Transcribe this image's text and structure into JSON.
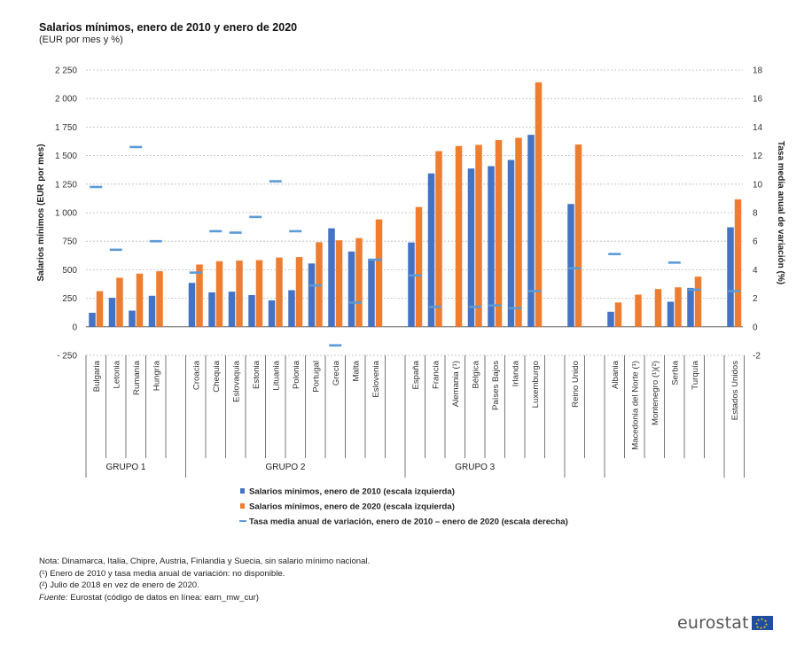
{
  "title": "Salarios mínimos,  enero de 2010 y enero de 2020",
  "subtitle": "(EUR por mes y %)",
  "notes": [
    "Nota: Dinamarca, Italia, Chipre, Austria, Finlandia y Suecia, sin salario mínimo nacional.",
    "(¹) Enero de 2010 y tasa media anual de variación: no disponible.",
    "(²) Julio de 2018 en vez de enero de 2020."
  ],
  "source_label": "Fuente:",
  "source_text": " Eurostat (código de datos en línea: earn_mw_cur)",
  "brand": "eurostat",
  "chart_data": {
    "type": "bar",
    "ylabel": "Salarios mínimos (EUR por mes)",
    "y2label": "Tasa media anual de variación (%)",
    "ylim": [
      -250,
      2250
    ],
    "y2lim": [
      -2,
      18
    ],
    "yticks": [
      "- 250",
      "0",
      "250",
      "500",
      "750",
      "1 000",
      "1 250",
      "1 500",
      "1 750",
      "2 000",
      "2 250"
    ],
    "y2ticks": [
      "-2",
      "0",
      "2",
      "4",
      "6",
      "8",
      "10",
      "12",
      "14",
      "16",
      "18"
    ],
    "colors": {
      "s2010": "#4472c4",
      "s2020": "#ed7d31",
      "rate": "#5b9bd5"
    },
    "categories": [
      "Bulgaria",
      "Letonia",
      "Rumanía",
      "Hungría",
      "Croacia",
      "Chequia",
      "Eslovaquia",
      "Estonia",
      "Lituania",
      "Polonia",
      "Portugal",
      "Grecia",
      "Malta",
      "Eslovenia",
      "España",
      "Francia",
      "Alemania (¹)",
      "Bélgica",
      "Países Bajos",
      "Irlanda",
      "Luxemburgo",
      "Reino Unido",
      "Albania",
      "Macedonia del Norte (¹)",
      "Montenegro (¹)(²)",
      "Serbia",
      "Turquía",
      "Estados Unidos"
    ],
    "groups": [
      {
        "label": "GRUPO 1",
        "count": 4
      },
      {
        "label": "GRUPO 2",
        "count": 10
      },
      {
        "label": "GRUPO 3",
        "count": 7
      },
      {
        "label": "",
        "count": 1
      },
      {
        "label": "",
        "count": 5
      },
      {
        "label": "",
        "count": 1
      }
    ],
    "series": [
      {
        "name": "Salarios mínimos, enero de 2010 (escala izquierda)",
        "axis": "left",
        "values": [
          123,
          254,
          142,
          272,
          385,
          302,
          308,
          278,
          232,
          321,
          555,
          863,
          660,
          597,
          739,
          1344,
          null,
          1387,
          1408,
          1462,
          1682,
          1076,
          132,
          null,
          null,
          220,
          341,
          872
        ]
      },
      {
        "name": "Salarios mínimos, enero de 2020 (escala izquierda)",
        "axis": "left",
        "values": [
          312,
          430,
          466,
          487,
          546,
          575,
          580,
          584,
          607,
          611,
          741,
          758,
          777,
          941,
          1050,
          1539,
          1584,
          1594,
          1636,
          1656,
          2142,
          1597,
          213,
          282,
          331,
          346,
          440,
          1117
        ]
      },
      {
        "name": "Tasa media anual de variación, enero de 2010 – enero de 2020 (escala derecha)",
        "axis": "right",
        "values": [
          9.8,
          5.4,
          12.6,
          6.0,
          3.8,
          6.7,
          6.6,
          7.7,
          10.2,
          6.7,
          2.9,
          -1.3,
          1.7,
          4.7,
          3.6,
          1.4,
          null,
          1.4,
          1.5,
          1.3,
          2.5,
          4.1,
          5.1,
          null,
          null,
          4.5,
          2.6,
          2.5
        ]
      }
    ]
  }
}
